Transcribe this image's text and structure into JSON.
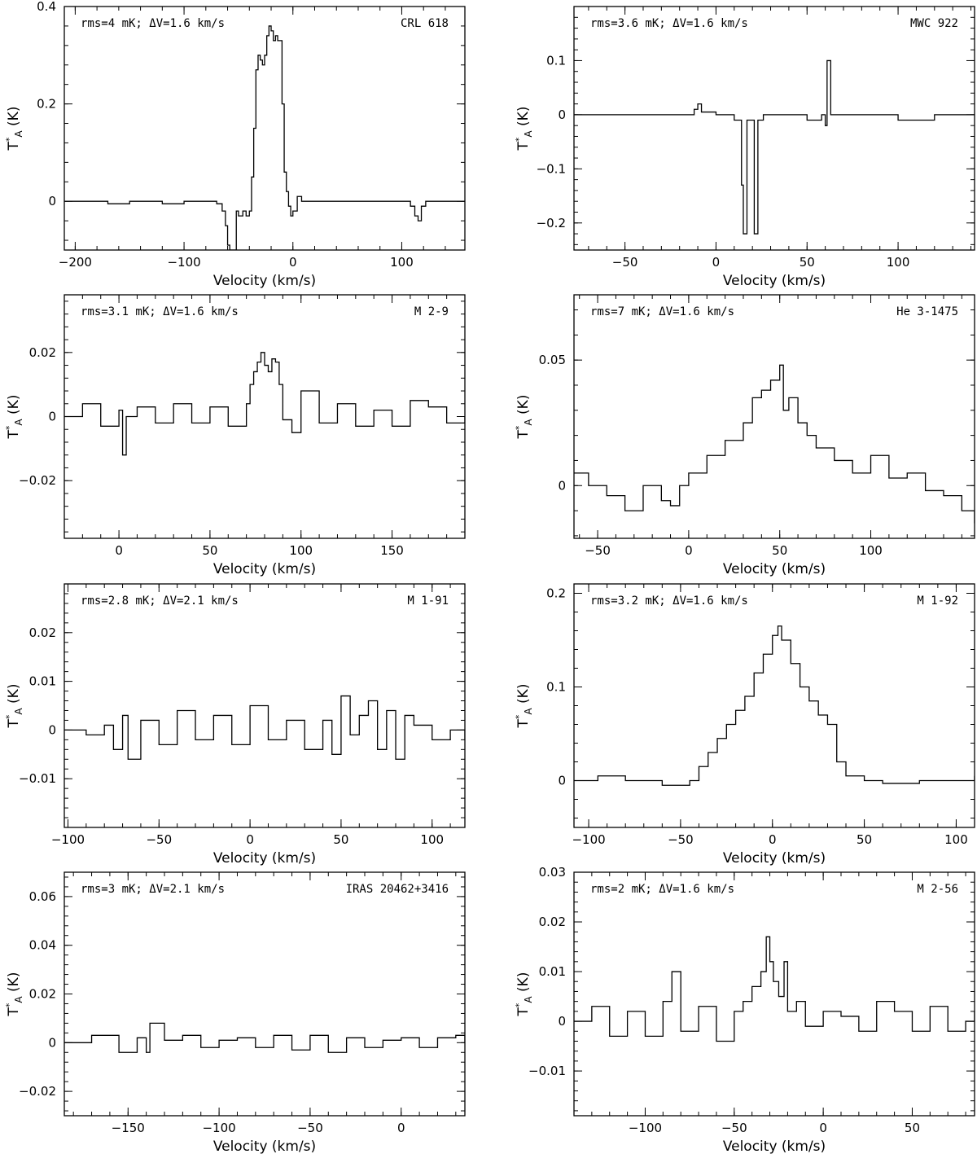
{
  "chart_data": [
    {
      "type": "line",
      "name": "CRL 618",
      "annotation": "rms=4 mK; ΔV=1.6 km/s",
      "xlabel": "Velocity (km/s)",
      "ylabel": "T*A (K)",
      "xlim": [
        -210,
        158
      ],
      "ylim": [
        -0.1,
        0.4
      ],
      "xticks": [
        -200,
        -100,
        0,
        100
      ],
      "yticks": [
        0,
        0.2,
        0.4
      ],
      "x": [
        -210,
        -190,
        -170,
        -150,
        -120,
        -100,
        -80,
        -70,
        -65,
        -62,
        -60,
        -58,
        -55,
        -52,
        -50,
        -46,
        -43,
        -40,
        -38,
        -36,
        -34,
        -32,
        -30,
        -28,
        -26,
        -24,
        -22,
        -20,
        -18,
        -16,
        -14,
        -12,
        -10,
        -8,
        -6,
        -4,
        -2,
        0,
        4,
        8,
        15,
        30,
        60,
        90,
        108,
        112,
        115,
        118,
        122,
        140,
        158
      ],
      "y": [
        0,
        0,
        -0.005,
        0,
        -0.005,
        0,
        0,
        -0.005,
        -0.02,
        -0.05,
        -0.09,
        -0.1,
        -0.1,
        -0.02,
        -0.03,
        -0.02,
        -0.03,
        -0.02,
        0.05,
        0.15,
        0.27,
        0.3,
        0.29,
        0.28,
        0.3,
        0.34,
        0.36,
        0.35,
        0.33,
        0.34,
        0.33,
        0.33,
        0.2,
        0.06,
        0.02,
        -0.01,
        -0.03,
        -0.02,
        0.01,
        0,
        0,
        0,
        0,
        0,
        -0.01,
        -0.03,
        -0.04,
        -0.01,
        0,
        0,
        0
      ]
    },
    {
      "type": "line",
      "name": "MWC 922",
      "annotation": "rms=3.6 mK; ΔV=1.6 km/s",
      "xlabel": "Velocity (km/s)",
      "ylabel": "T*A (K)",
      "xlim": [
        -78,
        142
      ],
      "ylim": [
        -0.25,
        0.2
      ],
      "xticks": [
        -50,
        0,
        50,
        100
      ],
      "yticks": [
        -0.2,
        -0.1,
        0,
        0.1
      ],
      "x": [
        -78,
        -60,
        -40,
        -20,
        -12,
        -10,
        -8,
        0,
        10,
        14,
        15,
        17,
        18,
        20,
        21,
        23,
        24,
        26,
        30,
        40,
        50,
        58,
        60,
        61,
        62,
        63,
        65,
        80,
        100,
        120,
        142
      ],
      "y": [
        0,
        0,
        0,
        0,
        0.01,
        0.02,
        0.005,
        0,
        -0.01,
        -0.13,
        -0.22,
        -0.01,
        -0.01,
        -0.01,
        -0.22,
        -0.01,
        -0.01,
        0,
        0,
        0,
        -0.01,
        0,
        -0.02,
        0.1,
        0.1,
        0,
        0,
        0,
        -0.01,
        0,
        0
      ]
    },
    {
      "type": "line",
      "name": "M 2-9",
      "annotation": "rms=3.1 mK; ΔV=1.6 km/s",
      "xlabel": "Velocity (km/s)",
      "ylabel": "T*A (K)",
      "xlim": [
        -30,
        190
      ],
      "ylim": [
        -0.038,
        0.038
      ],
      "xticks": [
        0,
        50,
        100,
        150
      ],
      "yticks": [
        -0.02,
        0,
        0.02
      ],
      "x": [
        -30,
        -20,
        -10,
        0,
        2,
        4,
        10,
        20,
        30,
        40,
        50,
        60,
        70,
        72,
        74,
        76,
        78,
        80,
        82,
        84,
        86,
        88,
        90,
        95,
        100,
        110,
        120,
        130,
        140,
        150,
        160,
        170,
        180,
        190
      ],
      "y": [
        0,
        0.004,
        -0.003,
        0.002,
        -0.012,
        0,
        0.003,
        -0.002,
        0.004,
        -0.002,
        0.003,
        -0.003,
        0.004,
        0.01,
        0.014,
        0.017,
        0.02,
        0.016,
        0.014,
        0.018,
        0.017,
        0.01,
        -0.001,
        -0.005,
        0.008,
        -0.002,
        0.004,
        -0.003,
        0.002,
        -0.003,
        0.005,
        0.003,
        -0.002,
        0
      ]
    },
    {
      "type": "line",
      "name": "He 3-1475",
      "annotation": "rms=7 mK; ΔV=1.6 km/s",
      "xlabel": "Velocity (km/s)",
      "ylabel": "T*A (K)",
      "xlim": [
        -63,
        157
      ],
      "ylim": [
        -0.021,
        0.076
      ],
      "xticks": [
        -50,
        0,
        50,
        100
      ],
      "yticks": [
        0,
        0.05
      ],
      "x": [
        -63,
        -55,
        -45,
        -35,
        -25,
        -15,
        -10,
        -5,
        0,
        10,
        20,
        30,
        35,
        40,
        45,
        50,
        52,
        55,
        60,
        65,
        70,
        80,
        90,
        100,
        110,
        120,
        130,
        140,
        150,
        157
      ],
      "y": [
        0.005,
        0,
        -0.004,
        -0.01,
        0,
        -0.006,
        -0.008,
        0,
        0.005,
        0.012,
        0.018,
        0.025,
        0.035,
        0.038,
        0.042,
        0.048,
        0.03,
        0.035,
        0.025,
        0.02,
        0.015,
        0.01,
        0.005,
        0.012,
        0.003,
        0.005,
        -0.002,
        -0.004,
        -0.01,
        -0.015
      ]
    },
    {
      "type": "line",
      "name": "M 1-91",
      "annotation": "rms=2.8 mK; ΔV=2.1 km/s",
      "xlabel": "Velocity (km/s)",
      "ylabel": "T*A (K)",
      "xlim": [
        -102,
        118
      ],
      "ylim": [
        -0.02,
        0.03
      ],
      "xticks": [
        -100,
        -50,
        0,
        50,
        100
      ],
      "yticks": [
        -0.01,
        0,
        0.01,
        0.02
      ],
      "x": [
        -102,
        -90,
        -80,
        -75,
        -70,
        -67,
        -60,
        -50,
        -40,
        -30,
        -20,
        -10,
        0,
        10,
        20,
        30,
        40,
        45,
        50,
        55,
        60,
        65,
        70,
        75,
        80,
        85,
        90,
        100,
        110,
        118
      ],
      "y": [
        0,
        -0.001,
        0.001,
        -0.004,
        0.003,
        -0.006,
        0.002,
        -0.003,
        0.004,
        -0.002,
        0.003,
        -0.003,
        0.005,
        -0.002,
        0.002,
        -0.004,
        0.002,
        -0.005,
        0.007,
        -0.001,
        0.003,
        0.006,
        -0.004,
        0.004,
        -0.006,
        0.003,
        0.001,
        -0.002,
        0,
        -0.002
      ]
    },
    {
      "type": "line",
      "name": "M 1-92",
      "annotation": "rms=3.2 mK; ΔV=1.6 km/s",
      "xlabel": "Velocity (km/s)",
      "ylabel": "T*A (K)",
      "xlim": [
        -108,
        110
      ],
      "ylim": [
        -0.05,
        0.21
      ],
      "xticks": [
        -100,
        -50,
        0,
        50,
        100
      ],
      "yticks": [
        0,
        0.1,
        0.2
      ],
      "x": [
        -108,
        -95,
        -80,
        -60,
        -45,
        -40,
        -35,
        -30,
        -25,
        -20,
        -15,
        -10,
        -5,
        0,
        3,
        5,
        10,
        15,
        20,
        25,
        30,
        35,
        40,
        50,
        60,
        80,
        100,
        110
      ],
      "y": [
        0,
        0.005,
        0,
        -0.005,
        0,
        0.015,
        0.03,
        0.045,
        0.06,
        0.075,
        0.09,
        0.115,
        0.135,
        0.155,
        0.165,
        0.15,
        0.125,
        0.1,
        0.085,
        0.07,
        0.06,
        0.02,
        0.005,
        0,
        -0.003,
        0,
        0,
        0.005
      ]
    },
    {
      "type": "line",
      "name": "IRAS 20462+3416",
      "annotation": "rms=3 mK; ΔV=2.1 km/s",
      "xlabel": "Velocity (km/s)",
      "ylabel": "T*A (K)",
      "xlim": [
        -185,
        35
      ],
      "ylim": [
        -0.03,
        0.07
      ],
      "xticks": [
        -150,
        -100,
        -50,
        0
      ],
      "yticks": [
        -0.02,
        0,
        0.02,
        0.04,
        0.06
      ],
      "x": [
        -185,
        -170,
        -155,
        -145,
        -140,
        -138,
        -130,
        -120,
        -110,
        -100,
        -90,
        -80,
        -70,
        -60,
        -50,
        -40,
        -30,
        -20,
        -10,
        0,
        10,
        20,
        30,
        35
      ],
      "y": [
        0,
        0.003,
        -0.004,
        0.002,
        -0.004,
        0.008,
        0.001,
        0.003,
        -0.002,
        0.001,
        0.002,
        -0.002,
        0.003,
        -0.003,
        0.003,
        -0.004,
        0.002,
        -0.002,
        0.001,
        0.002,
        -0.002,
        0.002,
        0.003,
        0
      ]
    },
    {
      "type": "line",
      "name": "M 2-56",
      "annotation": "rms=2 mK; ΔV=1.6 km/s",
      "xlabel": "Velocity (km/s)",
      "ylabel": "T*A (K)",
      "xlim": [
        -140,
        85
      ],
      "ylim": [
        -0.019,
        0.03
      ],
      "xticks": [
        -100,
        -50,
        0,
        50
      ],
      "yticks": [
        -0.01,
        0,
        0.01,
        0.02,
        0.03
      ],
      "x": [
        -140,
        -130,
        -120,
        -110,
        -100,
        -90,
        -85,
        -80,
        -70,
        -60,
        -50,
        -45,
        -40,
        -35,
        -32,
        -30,
        -28,
        -25,
        -22,
        -20,
        -15,
        -10,
        0,
        10,
        20,
        30,
        40,
        50,
        60,
        70,
        80,
        85
      ],
      "y": [
        0,
        0.003,
        -0.003,
        0.002,
        -0.003,
        0.004,
        0.01,
        -0.002,
        0.003,
        -0.004,
        0.002,
        0.004,
        0.007,
        0.01,
        0.017,
        0.012,
        0.008,
        0.005,
        0.012,
        0.002,
        0.004,
        -0.001,
        0.002,
        0.001,
        -0.002,
        0.004,
        0.002,
        -0.002,
        0.003,
        -0.002,
        0,
        0.002
      ]
    }
  ]
}
